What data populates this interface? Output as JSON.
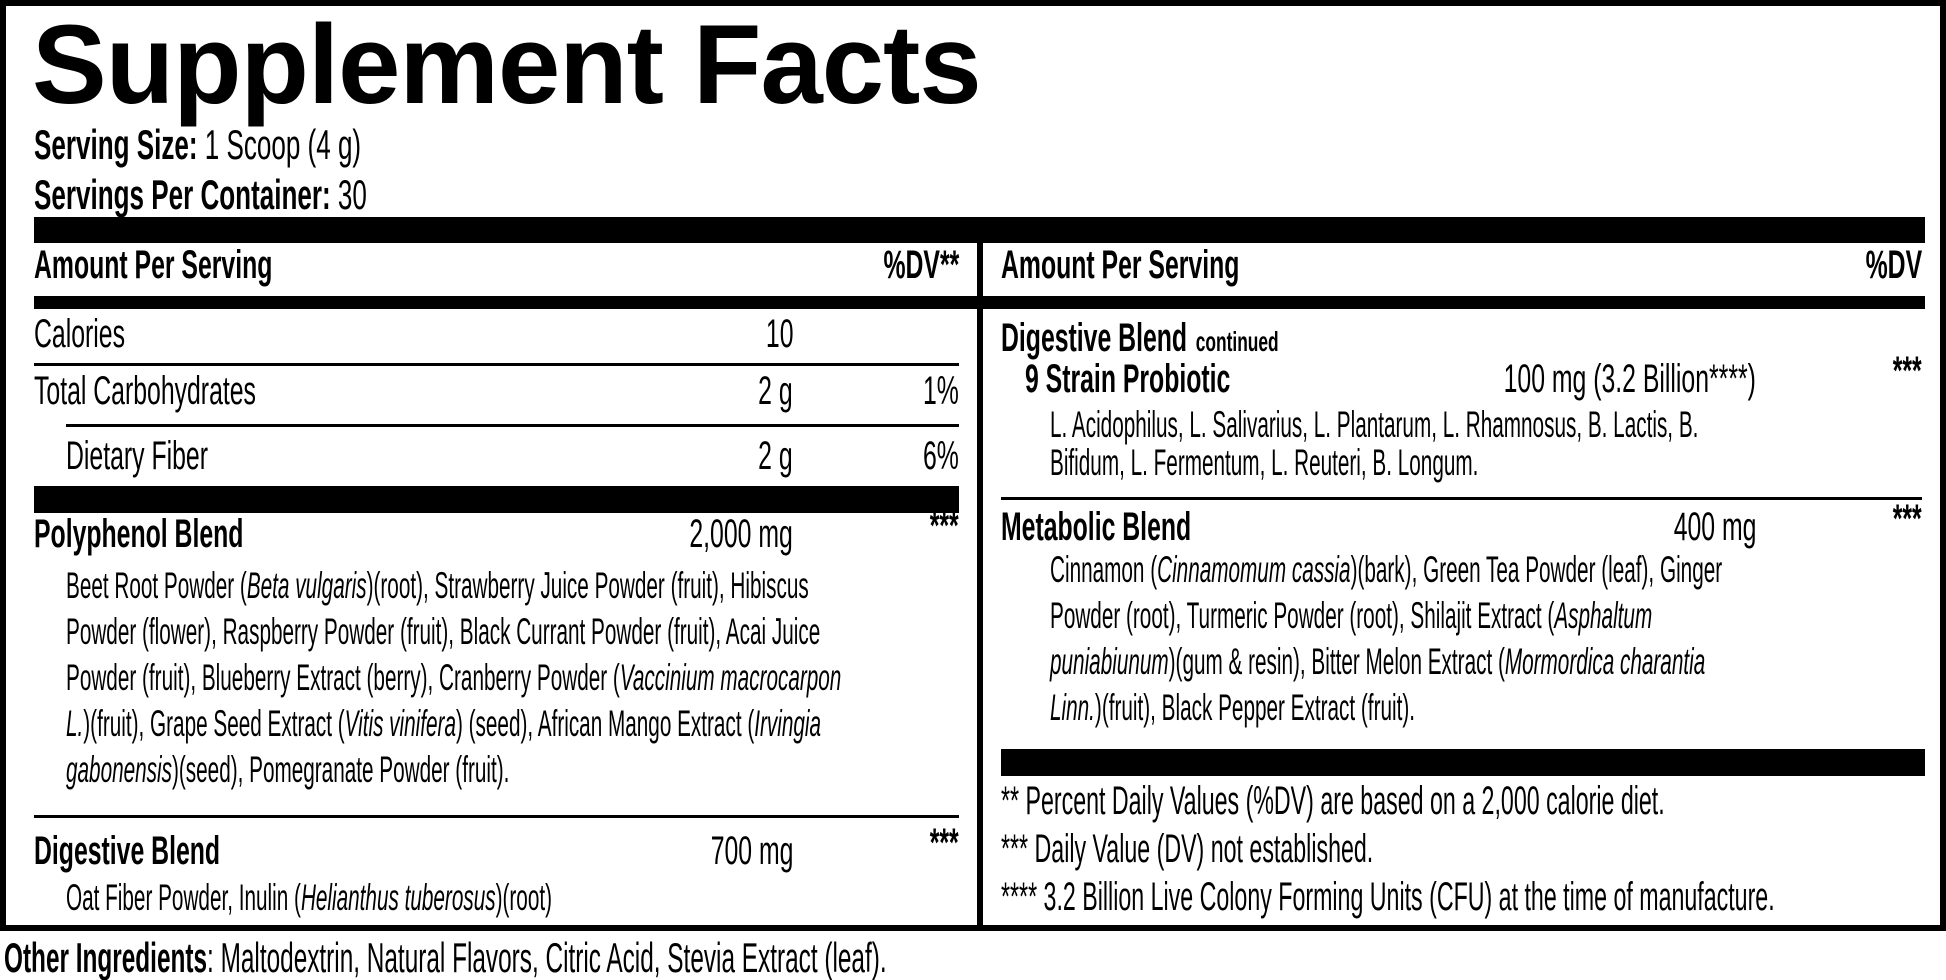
{
  "label": {
    "title": "Supplement Facts",
    "serving_size": {
      "label": "Serving Size:",
      "value": "1 Scoop (4 g)"
    },
    "servings_per_container": {
      "label": "Servings Per Container:",
      "value": "30"
    },
    "left_column": {
      "header": {
        "amount": "Amount Per Serving",
        "dv": "%DV**"
      },
      "rows": [
        {
          "name": "Calories",
          "amount": "10",
          "dv": ""
        },
        {
          "name": "Total Carbohydrates",
          "amount": "2 g",
          "dv": "1%"
        },
        {
          "name": "Dietary Fiber",
          "amount": "2 g",
          "dv": "6%"
        }
      ],
      "blends": [
        {
          "name": "Polyphenol Blend",
          "amount": "2,000 mg",
          "dv": "***",
          "ingredients": [
            {
              "t": "Beet Root Powder ("
            },
            {
              "t": "Beta vulgaris",
              "i": true
            },
            {
              "t": ")(root), Strawberry Juice Powder (fruit), Hibiscus"
            },
            {
              "br": true
            },
            {
              "t": "Powder (flower), Raspberry Powder (fruit), Black Currant Powder (fruit), Acai Juice"
            },
            {
              "br": true
            },
            {
              "t": "Powder (fruit), Blueberry Extract (berry), Cranberry Powder ("
            },
            {
              "t": "Vaccinium macrocarpon",
              "i": true
            },
            {
              "br": true
            },
            {
              "t": "L.",
              "i": true
            },
            {
              "t": ")(fruit), Grape Seed Extract ("
            },
            {
              "t": "Vitis vinifera",
              "i": true
            },
            {
              "t": ") (seed), African Mango Extract ("
            },
            {
              "t": "Irvingia",
              "i": true
            },
            {
              "br": true
            },
            {
              "t": "gabonensis",
              "i": true
            },
            {
              "t": ")(seed), Pomegranate Powder (fruit)."
            }
          ]
        },
        {
          "name": "Digestive Blend",
          "amount": "700 mg",
          "dv": "***",
          "ingredients": [
            {
              "t": "Oat Fiber Powder, Inulin ("
            },
            {
              "t": "Helianthus tuberosus",
              "i": true
            },
            {
              "t": ")(root)"
            }
          ]
        }
      ]
    },
    "right_column": {
      "header": {
        "amount": "Amount Per Serving",
        "dv": "%DV"
      },
      "blend_continued": {
        "name": "Digestive Blend",
        "suffix": "continued"
      },
      "sub_row": {
        "name": "9 Strain Probiotic",
        "amount": "100 mg (3.2 Billion****)",
        "dv": "***",
        "ingredients": [
          {
            "t": "L. Acidophilus, L. Salivarius, L. Plantarum, L. Rhamnosus, B. Lactis, B."
          },
          {
            "br": true
          },
          {
            "t": "Bifidum, L. Fermentum, L. Reuteri, B. Longum."
          }
        ]
      },
      "blends": [
        {
          "name": "Metabolic Blend",
          "amount": "400 mg",
          "dv": "***",
          "ingredients": [
            {
              "t": "Cinnamon ("
            },
            {
              "t": "Cinnamomum cassia",
              "i": true
            },
            {
              "t": ")(bark), Green Tea Powder (leaf), Ginger"
            },
            {
              "br": true
            },
            {
              "t": "Powder (root), Turmeric Powder (root), Shilajit Extract ("
            },
            {
              "t": "Asphaltum",
              "i": true
            },
            {
              "br": true
            },
            {
              "t": "puniabiunum",
              "i": true
            },
            {
              "t": ")(gum & resin), Bitter Melon Extract ("
            },
            {
              "t": "Mormordica charantia",
              "i": true
            },
            {
              "br": true
            },
            {
              "t": "Linn.",
              "i": true
            },
            {
              "t": ")(fruit), Black Pepper Extract (fruit)."
            }
          ]
        }
      ],
      "footnotes": [
        "** Percent Daily Values (%DV) are based on a 2,000 calorie diet.",
        "*** Daily Value (DV) not established.",
        "**** 3.2 Billion Live Colony Forming Units (CFU) at the time of manufacture."
      ]
    },
    "other_ingredients": {
      "label": "Other Ingredients",
      "text": ": Maltodextrin, Natural Flavors, Citric Acid, Stevia Extract (leaf)."
    },
    "colors": {
      "ink": "#000000",
      "paper": "#ffffff"
    }
  }
}
